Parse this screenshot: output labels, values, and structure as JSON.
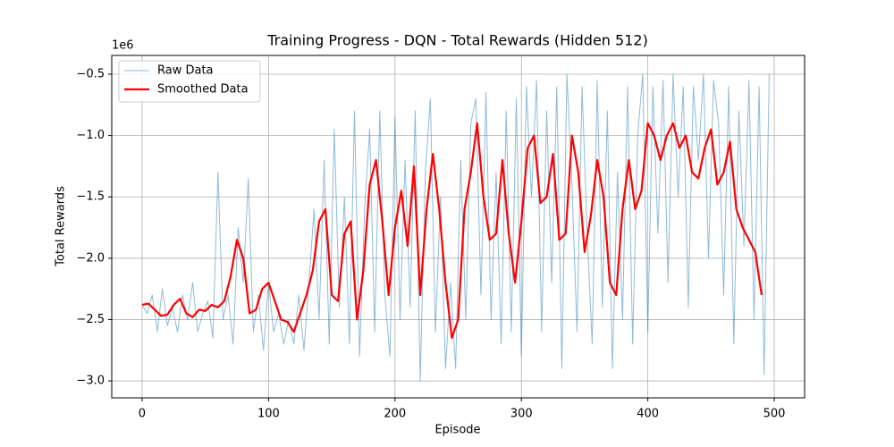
{
  "chart_data": {
    "type": "line",
    "title": "Training Progress - DQN - Total Rewards (Hidden 512)",
    "x_label": "Episode",
    "y_label": "Total Rewards",
    "y_offset_label": "1e6",
    "xlim": [
      -24,
      524
    ],
    "ylim": [
      -3.138,
      -0.347
    ],
    "xticks": [
      0,
      100,
      200,
      300,
      400,
      500
    ],
    "yticks": [
      {
        "value": -3.0,
        "label": "−3.0"
      },
      {
        "value": -2.5,
        "label": "−2.5"
      },
      {
        "value": -2.0,
        "label": "−2.0"
      },
      {
        "value": -1.5,
        "label": "−1.5"
      },
      {
        "value": -1.0,
        "label": "−1.0"
      },
      {
        "value": -0.5,
        "label": "−0.5"
      }
    ],
    "grid": true,
    "legend": "upper left",
    "series": [
      {
        "name": "Raw Data",
        "color": "#1f77b4",
        "opacity": 0.5,
        "width": 1,
        "x": [
          0,
          4,
          8,
          12,
          16,
          20,
          24,
          28,
          32,
          36,
          40,
          44,
          48,
          52,
          56,
          60,
          64,
          68,
          72,
          76,
          80,
          84,
          88,
          92,
          96,
          100,
          104,
          108,
          112,
          116,
          120,
          124,
          128,
          132,
          136,
          140,
          144,
          148,
          152,
          156,
          160,
          164,
          168,
          172,
          176,
          180,
          184,
          188,
          192,
          196,
          200,
          204,
          208,
          212,
          216,
          220,
          224,
          228,
          232,
          236,
          240,
          244,
          248,
          252,
          256,
          260,
          264,
          268,
          272,
          276,
          280,
          284,
          288,
          292,
          296,
          300,
          304,
          308,
          312,
          316,
          320,
          324,
          328,
          332,
          336,
          340,
          344,
          348,
          352,
          356,
          360,
          364,
          368,
          372,
          376,
          380,
          384,
          388,
          392,
          396,
          400,
          404,
          408,
          412,
          416,
          420,
          424,
          428,
          432,
          436,
          440,
          444,
          448,
          452,
          456,
          460,
          464,
          468,
          472,
          476,
          480,
          484,
          488,
          492,
          496
        ],
        "values": [
          -2.38,
          -2.45,
          -2.3,
          -2.6,
          -2.25,
          -2.55,
          -2.4,
          -2.6,
          -2.3,
          -2.5,
          -2.2,
          -2.6,
          -2.45,
          -2.35,
          -2.65,
          -1.3,
          -2.5,
          -2.3,
          -2.7,
          -1.75,
          -2.2,
          -1.35,
          -2.6,
          -2.3,
          -2.75,
          -2.2,
          -2.6,
          -2.45,
          -2.7,
          -2.5,
          -2.7,
          -2.3,
          -2.75,
          -2.2,
          -1.6,
          -2.5,
          -1.2,
          -2.7,
          -0.95,
          -2.4,
          -1.5,
          -2.7,
          -0.8,
          -2.8,
          -1.6,
          -0.95,
          -2.6,
          -0.8,
          -2.3,
          -2.8,
          -0.85,
          -2.5,
          -1.2,
          -2.4,
          -0.8,
          -3.0,
          -1.3,
          -0.7,
          -2.6,
          -1.5,
          -2.9,
          -2.2,
          -2.9,
          -1.2,
          -2.5,
          -0.9,
          -0.7,
          -2.3,
          -0.65,
          -2.5,
          -1.3,
          -2.7,
          -0.8,
          -2.6,
          -0.7,
          -2.8,
          -0.6,
          -1.5,
          -0.55,
          -2.6,
          -0.8,
          -2.2,
          -0.6,
          -2.9,
          -0.5,
          -1.4,
          -2.6,
          -0.6,
          -1.8,
          -2.7,
          -0.55,
          -2.4,
          -0.8,
          -2.9,
          -1.3,
          -2.5,
          -0.6,
          -2.7,
          -1.0,
          -0.5,
          -2.6,
          -0.6,
          -1.8,
          -0.55,
          -2.2,
          -0.5,
          -1.5,
          -0.6,
          -2.4,
          -0.6,
          -1.2,
          -0.5,
          -2.0,
          -0.55,
          -0.9,
          -2.3,
          -0.6,
          -2.7,
          -0.8,
          -1.9,
          -0.55,
          -2.5,
          -0.6,
          -2.95,
          -0.5
        ]
      },
      {
        "name": "Smoothed Data",
        "color": "#ff0000",
        "opacity": 1,
        "width": 2.2,
        "x": [
          0,
          5,
          10,
          15,
          20,
          25,
          30,
          35,
          40,
          45,
          50,
          55,
          60,
          65,
          70,
          75,
          80,
          85,
          90,
          95,
          100,
          105,
          110,
          115,
          120,
          125,
          130,
          135,
          140,
          145,
          150,
          155,
          160,
          165,
          170,
          175,
          180,
          185,
          190,
          195,
          200,
          205,
          210,
          215,
          220,
          225,
          230,
          235,
          240,
          245,
          250,
          255,
          260,
          265,
          270,
          275,
          280,
          285,
          290,
          295,
          300,
          305,
          310,
          315,
          320,
          325,
          330,
          335,
          340,
          345,
          350,
          355,
          360,
          365,
          370,
          375,
          380,
          385,
          390,
          395,
          400,
          405,
          410,
          415,
          420,
          425,
          430,
          435,
          440,
          445,
          450,
          455,
          460,
          465,
          470,
          475,
          480,
          485,
          490
        ],
        "values": [
          -2.38,
          -2.37,
          -2.42,
          -2.47,
          -2.46,
          -2.38,
          -2.33,
          -2.45,
          -2.48,
          -2.42,
          -2.43,
          -2.38,
          -2.4,
          -2.35,
          -2.15,
          -1.85,
          -2.0,
          -2.45,
          -2.42,
          -2.25,
          -2.2,
          -2.35,
          -2.5,
          -2.52,
          -2.6,
          -2.45,
          -2.3,
          -2.1,
          -1.7,
          -1.6,
          -2.3,
          -2.35,
          -1.8,
          -1.7,
          -2.5,
          -2.1,
          -1.4,
          -1.2,
          -1.7,
          -2.3,
          -1.75,
          -1.45,
          -1.9,
          -1.25,
          -2.3,
          -1.6,
          -1.15,
          -1.6,
          -2.2,
          -2.65,
          -2.5,
          -1.6,
          -1.3,
          -0.9,
          -1.5,
          -1.85,
          -1.8,
          -1.2,
          -1.8,
          -2.2,
          -1.7,
          -1.1,
          -1.0,
          -1.55,
          -1.5,
          -1.15,
          -1.85,
          -1.8,
          -1.0,
          -1.3,
          -1.95,
          -1.65,
          -1.2,
          -1.5,
          -2.2,
          -2.3,
          -1.6,
          -1.2,
          -1.6,
          -1.45,
          -0.9,
          -1.0,
          -1.2,
          -1.0,
          -0.9,
          -1.1,
          -1.0,
          -1.3,
          -1.35,
          -1.1,
          -0.95,
          -1.4,
          -1.3,
          -1.05,
          -1.6,
          -1.75,
          -1.85,
          -1.95,
          -2.3
        ]
      }
    ]
  }
}
